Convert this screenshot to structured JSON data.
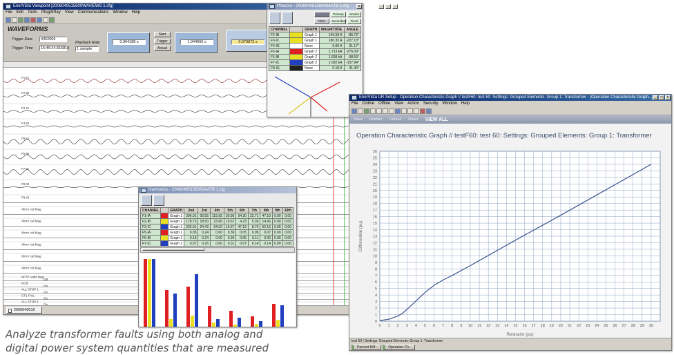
{
  "caption": {
    "line1": "Analyze transformer faults using both analog and",
    "line2": "digital power system quantities that are measured"
  },
  "viewpoint": {
    "title": "EnerVista Viewpoint  [2006040515600WAVIEWS 1.cfg]",
    "menu": [
      "File",
      "Edit",
      "Tools",
      "PlugAPlay",
      "View",
      "Communications",
      "Window",
      "Help"
    ],
    "header_title": "WAVEFORMS",
    "trigger_date_label": "Trigger Date",
    "trigger_date": "4/5/2006",
    "trigger_time_label": "Trigger Time",
    "trigger_time": "15:45:24.816815",
    "playback_label": "Playback Rate",
    "playback_value": "1 sample",
    "cursor1": "0.964188 s",
    "cursor2": "1.044060 s",
    "delta": "0.079872 s",
    "btn_start": "Start",
    "btn_trigger": "Trigger",
    "btn_actual": "Actual",
    "tab_label": "2006040516",
    "channels": [
      {
        "label": "F1-IA",
        "color": "#8a1c1c",
        "amp": 2.5
      },
      {
        "label": "F2-IB",
        "color": "#2a2a2a",
        "amp": 1.5
      },
      {
        "label": "F2-IC",
        "color": "#2a2a2a",
        "amp": 1.5
      },
      {
        "label": "F4-IG",
        "color": "#2a2a2a",
        "amp": 1.0
      },
      {
        "label": "F5-IA",
        "color": "#2a2a2a",
        "amp": 3.5
      },
      {
        "label": "F5-IB",
        "color": "#2a2a2a",
        "amp": 3.0
      },
      {
        "label": "F7-IC",
        "color": "#2a2a2a",
        "amp": 3.5
      },
      {
        "label": "F8-IG",
        "color": "#2a2a2a",
        "amp": 0.6
      }
    ],
    "analog_labels": [
      "F8-IG",
      "Xfrmr Iod Mag",
      "Xfrmr Iod Mag",
      "Xfrmr Iod Mag",
      "Xfrmr Iod Mag",
      "Xfrmr Iod Mag",
      "Xfrmr Iod Mag"
    ],
    "digital_labels": [
      "XFRT Volts Mag",
      "DCB",
      "ALL STOP 1",
      "CT1 FAIL",
      "ALL STOP 1"
    ],
    "digital_values": [
      "Off",
      "On",
      "On",
      "On",
      "On"
    ]
  },
  "phasors": {
    "title": "Phasors - 20060405156060AATB 1.cfg",
    "toggle_primary": "Primary",
    "toggle_scaled": "Scaled",
    "toggle_rms": "RMS",
    "toggle_secondary": "Secondary",
    "toggle_fixed": "Fixed",
    "headers": [
      "CHANNEL",
      "GRAPH",
      "MAGNITUDE",
      "ANGLE"
    ],
    "rows": [
      {
        "channel": "F2-IB",
        "color": "#e8e020",
        "graph": "Graph 1",
        "magnitude": "146.59 A",
        "angle": "-86.72°"
      },
      {
        "channel": "F3-IC",
        "color": "#e8e020",
        "graph": "Graph 1",
        "magnitude": "180.33 A",
        "angle": "-227.13°"
      },
      {
        "channel": "F4-IG",
        "color": "#ffffff",
        "graph": "None",
        "magnitude": "0.00 A",
        "angle": "31.17°"
      },
      {
        "channel": "F5-IA",
        "color": "#e02020",
        "graph": "Graph 2",
        "magnitude": "1.713 kA",
        "angle": "-276.09°"
      },
      {
        "channel": "F6-IB",
        "color": "#e8e020",
        "graph": "Graph 2",
        "magnitude": "1.608 kA",
        "angle": "-38.59°"
      },
      {
        "channel": "F7-IC",
        "color": "#2040c0",
        "graph": "Graph 2",
        "magnitude": "1.692 kA",
        "angle": "-157.84°"
      },
      {
        "channel": "F8-IG",
        "color": "#202020",
        "graph": "None",
        "magnitude": "0.18 A",
        "angle": "41.40°"
      }
    ]
  },
  "harmonics": {
    "title": "Harmonics - 20060405156060AATB 1.cfg",
    "headers": [
      "CHANNEL",
      "",
      "GRAPH",
      "2nd",
      "3rd",
      "4th",
      "5th",
      "6th",
      "7th",
      "8th",
      "9th",
      "10th"
    ],
    "rows": [
      {
        "channel": "F1-IA",
        "color": "#e02020",
        "graph": "Graph 1",
        "values": [
          "296.01",
          "00.55",
          "115.55",
          "30.95",
          "54.30",
          "23.71",
          "47.10",
          "0.00",
          "0.00"
        ]
      },
      {
        "channel": "F2-IB",
        "color": "#e8e020",
        "graph": "Graph 1",
        "values": [
          "178.73",
          "18.50",
          "23.66",
          "10.67",
          "4.23",
          "5.39",
          "14.66",
          "0.00",
          "0.00"
        ]
      },
      {
        "channel": "F3-IC",
        "color": "#2040c0",
        "graph": "Graph 1",
        "values": [
          "232.01",
          "24.43",
          "64.02",
          "16.57",
          "47.19",
          "8.70",
          "52.16",
          "0.00",
          "0.00"
        ]
      },
      {
        "channel": "F5-IA",
        "color": "#e02020",
        "graph": "Graph 1",
        "values": [
          "0.05",
          "0.24",
          "0.00",
          "0.30",
          "0.05",
          "0.09",
          "0.07",
          "0.00",
          "0.00"
        ]
      },
      {
        "channel": "F6-IB",
        "color": "#e8e020",
        "graph": "Graph 1",
        "values": [
          "0.13",
          "0.24",
          "0.00",
          "0.34",
          "0.05",
          "0.11",
          "0.00",
          "0.00",
          "0.00"
        ]
      },
      {
        "channel": "F7-IC",
        "color": "#2040c0",
        "graph": "Graph 1",
        "values": [
          "0.07",
          "0.26",
          "0.00",
          "0.31",
          "0.07",
          "0.14",
          "0.14",
          "0.00",
          "0.00"
        ]
      }
    ],
    "bars": [
      {
        "red": 100,
        "yellow": 100,
        "blue": 100
      },
      {
        "red": 55,
        "yellow": 13,
        "blue": 50
      },
      {
        "red": 60,
        "yellow": 18,
        "blue": 78
      },
      {
        "red": 32,
        "yellow": 8,
        "blue": 13
      },
      {
        "red": 25,
        "yellow": 5,
        "blue": 15
      },
      {
        "red": 17,
        "yellow": 6,
        "blue": 10
      },
      {
        "red": 35,
        "yellow": 12,
        "blue": 33
      }
    ]
  },
  "urs": {
    "title": "EnerVista UR Setup - Operation Characteristic Graph // testF60: test 60: Settings: Grouped Elements: Group 1: Transformer - [Operation Characteristic Graph...]",
    "menu": [
      "File",
      "Online",
      "Offline",
      "View",
      "Action",
      "Security",
      "Window",
      "Help"
    ],
    "nav": [
      "Save",
      "Restore",
      "Default",
      "Reset",
      "VIEW ALL"
    ],
    "graph_title": "Operation Characteristic Graph // testF60: test 60: Settings: Grouped Elements: Group 1: Transformer",
    "status": "test 60 | Settings: Grouped Elements: Group 1: Transformer",
    "taskbar": [
      "Percent Diff...",
      "Operation Ch..."
    ]
  },
  "chart_data": {
    "type": "line",
    "title": "Operation Characteristic Graph // testF60: test 60: Settings: Grouped Elements: Group 1: Transformer",
    "xlabel": "Restraint (pu)",
    "ylabel": "Differential (pu)",
    "xlim": [
      0,
      31
    ],
    "ylim": [
      0,
      26
    ],
    "xticks": [
      0,
      1,
      2,
      3,
      4,
      5,
      6,
      7,
      8,
      9,
      10,
      11,
      12,
      13,
      14,
      15,
      16,
      17,
      18,
      19,
      20,
      21,
      22,
      23,
      24,
      25,
      26,
      27,
      28,
      29,
      30
    ],
    "yticks": [
      0,
      1,
      2,
      3,
      4,
      5,
      6,
      7,
      8,
      9,
      10,
      11,
      12,
      13,
      14,
      15,
      16,
      17,
      18,
      19,
      20,
      21,
      22,
      23,
      24,
      25,
      26
    ],
    "grid": true,
    "series": [
      {
        "x": [
          0,
          1,
          2,
          2.5,
          3,
          4,
          5,
          6,
          7,
          8,
          10,
          15,
          20,
          25,
          30
        ],
        "y": [
          0.1,
          0.3,
          0.8,
          1.2,
          1.8,
          3.1,
          4.4,
          5.5,
          6.3,
          7,
          8.5,
          12.4,
          16.2,
          20.1,
          24
        ]
      }
    ]
  }
}
